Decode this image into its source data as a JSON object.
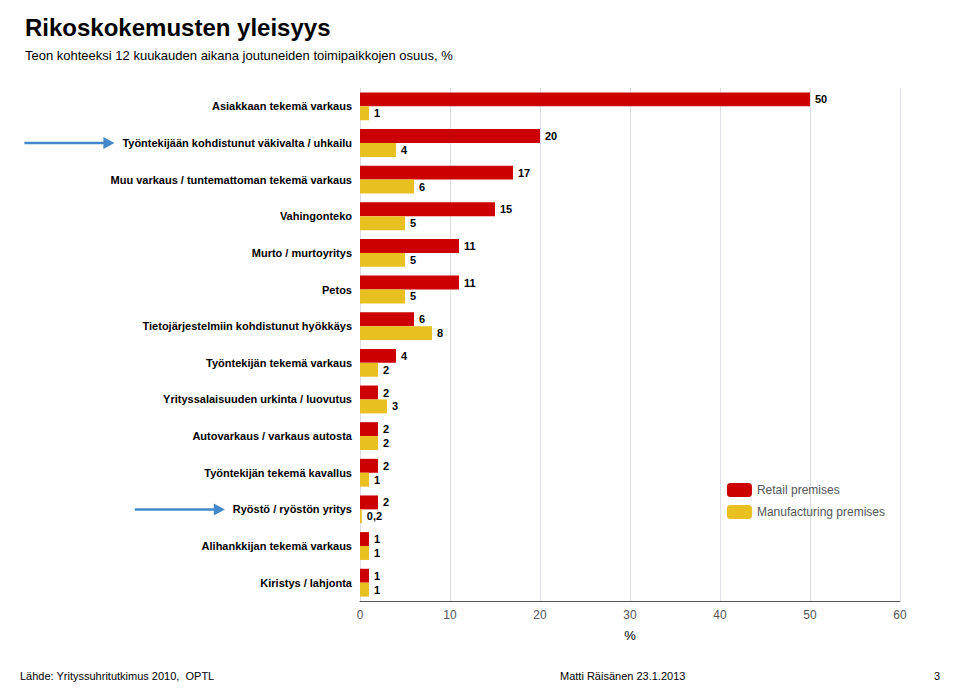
{
  "chart_data": {
    "type": "bar",
    "orientation": "horizontal",
    "title": "Rikoskokemusten yleisyys",
    "subtitle": "Teon kohteeksi 12 kuukauden aikana joutuneiden toimipaikkojen osuus, %",
    "categories": [
      "Asiakkaan tekemä varkaus",
      "Työntekijään kohdistunut väkivalta / uhkailu",
      "Muu varkaus / tuntemattoman tekemä varkaus",
      "Vahingonteko",
      "Murto / murtoyritys",
      "Petos",
      "Tietojärjestelmiin kohdistunut hyökkäys",
      "Työntekijän tekemä varkaus",
      "Yrityssalaisuuden urkinta / luovutus",
      "Autovarkaus / varkaus autosta",
      "Työntekijän tekemä kavallus",
      "Ryöstö / ryöstön yritys",
      "Alihankkijan tekemä varkaus",
      "Kiristys / lahjonta"
    ],
    "series": [
      {
        "name": "Retail premises",
        "color": "#cc0000",
        "values": [
          50,
          20,
          17,
          15,
          11,
          11,
          6,
          4,
          2,
          2,
          2,
          2,
          1,
          1
        ]
      },
      {
        "name": "Manufacturing premises",
        "color": "#e8c020",
        "values": [
          1,
          4,
          6,
          5,
          5,
          5,
          8,
          2,
          3,
          2,
          1,
          0.2,
          1,
          1
        ],
        "value_labels": [
          "1",
          "4",
          "6",
          "5",
          "5",
          "5",
          "8",
          "2",
          "3",
          "2",
          "1",
          "0,2",
          "1",
          "1"
        ]
      }
    ],
    "xlabel": "%",
    "xlim": [
      0,
      60
    ],
    "xticks": [
      0,
      10,
      20,
      30,
      40,
      50,
      60
    ],
    "grid": true,
    "legend": "lower right",
    "data_labels": true,
    "annotations": [
      "Lähde: Yrityssuhritutkimus 2010,  OPTL",
      "Matti Räisänen 23.1.2013",
      "3"
    ],
    "arrows": [
      "Työntekijään kohdistunut väkivalta / uhkailu",
      "Ryöstö / ryöstön yritys"
    ]
  }
}
